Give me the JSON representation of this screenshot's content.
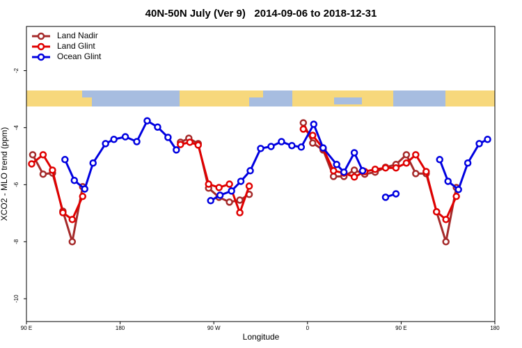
{
  "chart_data": {
    "type": "line",
    "title": "40N-50N July (Ver 9)   2014-09-06 to 2018-12-31",
    "x_label": "Longitude",
    "y_label": "XCO2 - MLO trend (ppm)",
    "xlim": [
      90,
      540
    ],
    "ylim": [
      -10.8,
      -0.45
    ],
    "xticks": [
      {
        "value": 90,
        "label": "90 E"
      },
      180,
      {
        "value": 270,
        "label": "90 W"
      },
      {
        "value": 360,
        "label": "0"
      },
      {
        "value": 450,
        "label": "90 E"
      },
      {
        "value": 540,
        "label": "180"
      }
    ],
    "yticks": [
      -2,
      -4,
      -6,
      -8,
      -10
    ],
    "grid": false,
    "legend": "top-left",
    "series": [
      {
        "name": "Land Nadir",
        "color": "#a52a2a",
        "x": [
          96,
          106,
          115,
          125,
          134,
          144,
          null,
          238,
          246,
          255,
          265,
          275,
          285,
          295,
          304,
          null,
          356,
          365,
          375,
          385,
          395,
          405,
          415,
          425,
          435,
          445,
          455,
          464,
          474,
          484,
          493,
          503
        ],
        "values": [
          -4.95,
          -5.63,
          -5.59,
          -6.93,
          -8.0,
          -6.07,
          null,
          -4.51,
          -4.37,
          -4.56,
          -6.12,
          -6.44,
          -6.61,
          -6.54,
          -6.34,
          null,
          -3.83,
          -4.54,
          -4.78,
          -5.71,
          -5.71,
          -5.49,
          -5.63,
          -5.56,
          -5.39,
          -5.29,
          -4.95,
          -5.61,
          -5.61,
          -6.95,
          -8.0,
          -6.1
        ]
      },
      {
        "name": "Land Glint",
        "color": "#e00000",
        "x": [
          95,
          106,
          115,
          125,
          134,
          144,
          null,
          238,
          247,
          255,
          265,
          275,
          285,
          295,
          304,
          null,
          356,
          365,
          375,
          385,
          395,
          405,
          415,
          425,
          435,
          445,
          455,
          464,
          474,
          484,
          493,
          503
        ],
        "values": [
          -5.27,
          -4.95,
          -5.49,
          -6.98,
          -7.22,
          -6.41,
          null,
          -4.59,
          -4.51,
          -4.61,
          -5.98,
          -6.1,
          -5.98,
          -6.98,
          -6.05,
          null,
          -4.05,
          -4.27,
          -4.73,
          -5.51,
          -5.59,
          -5.73,
          -5.54,
          -5.46,
          -5.41,
          -5.41,
          -5.24,
          -4.95,
          -5.54,
          -6.95,
          -7.22,
          -6.41
        ]
      },
      {
        "name": "Ocean Glint",
        "color": "#0000e0",
        "x": [
          127,
          136,
          146,
          154,
          166,
          174,
          185,
          196,
          206,
          216,
          226,
          234,
          null,
          267,
          276,
          287,
          296,
          305,
          315,
          325,
          335,
          345,
          354,
          366,
          375,
          388,
          395,
          405,
          413,
          null,
          435,
          445,
          null,
          487,
          495,
          505,
          514,
          525,
          533
        ],
        "values": [
          -5.12,
          -5.85,
          -6.15,
          -5.24,
          -4.56,
          -4.41,
          -4.32,
          -4.49,
          -3.76,
          -3.98,
          -4.34,
          -4.78,
          null,
          -6.56,
          -6.37,
          -6.22,
          -5.88,
          -5.51,
          -4.73,
          -4.66,
          -4.49,
          -4.63,
          -4.68,
          -3.88,
          -4.71,
          -5.29,
          -5.56,
          -4.88,
          -5.51,
          null,
          -6.44,
          -6.32,
          null,
          -5.12,
          -5.88,
          -6.17,
          -5.24,
          -4.56,
          -4.41
        ]
      }
    ]
  }
}
